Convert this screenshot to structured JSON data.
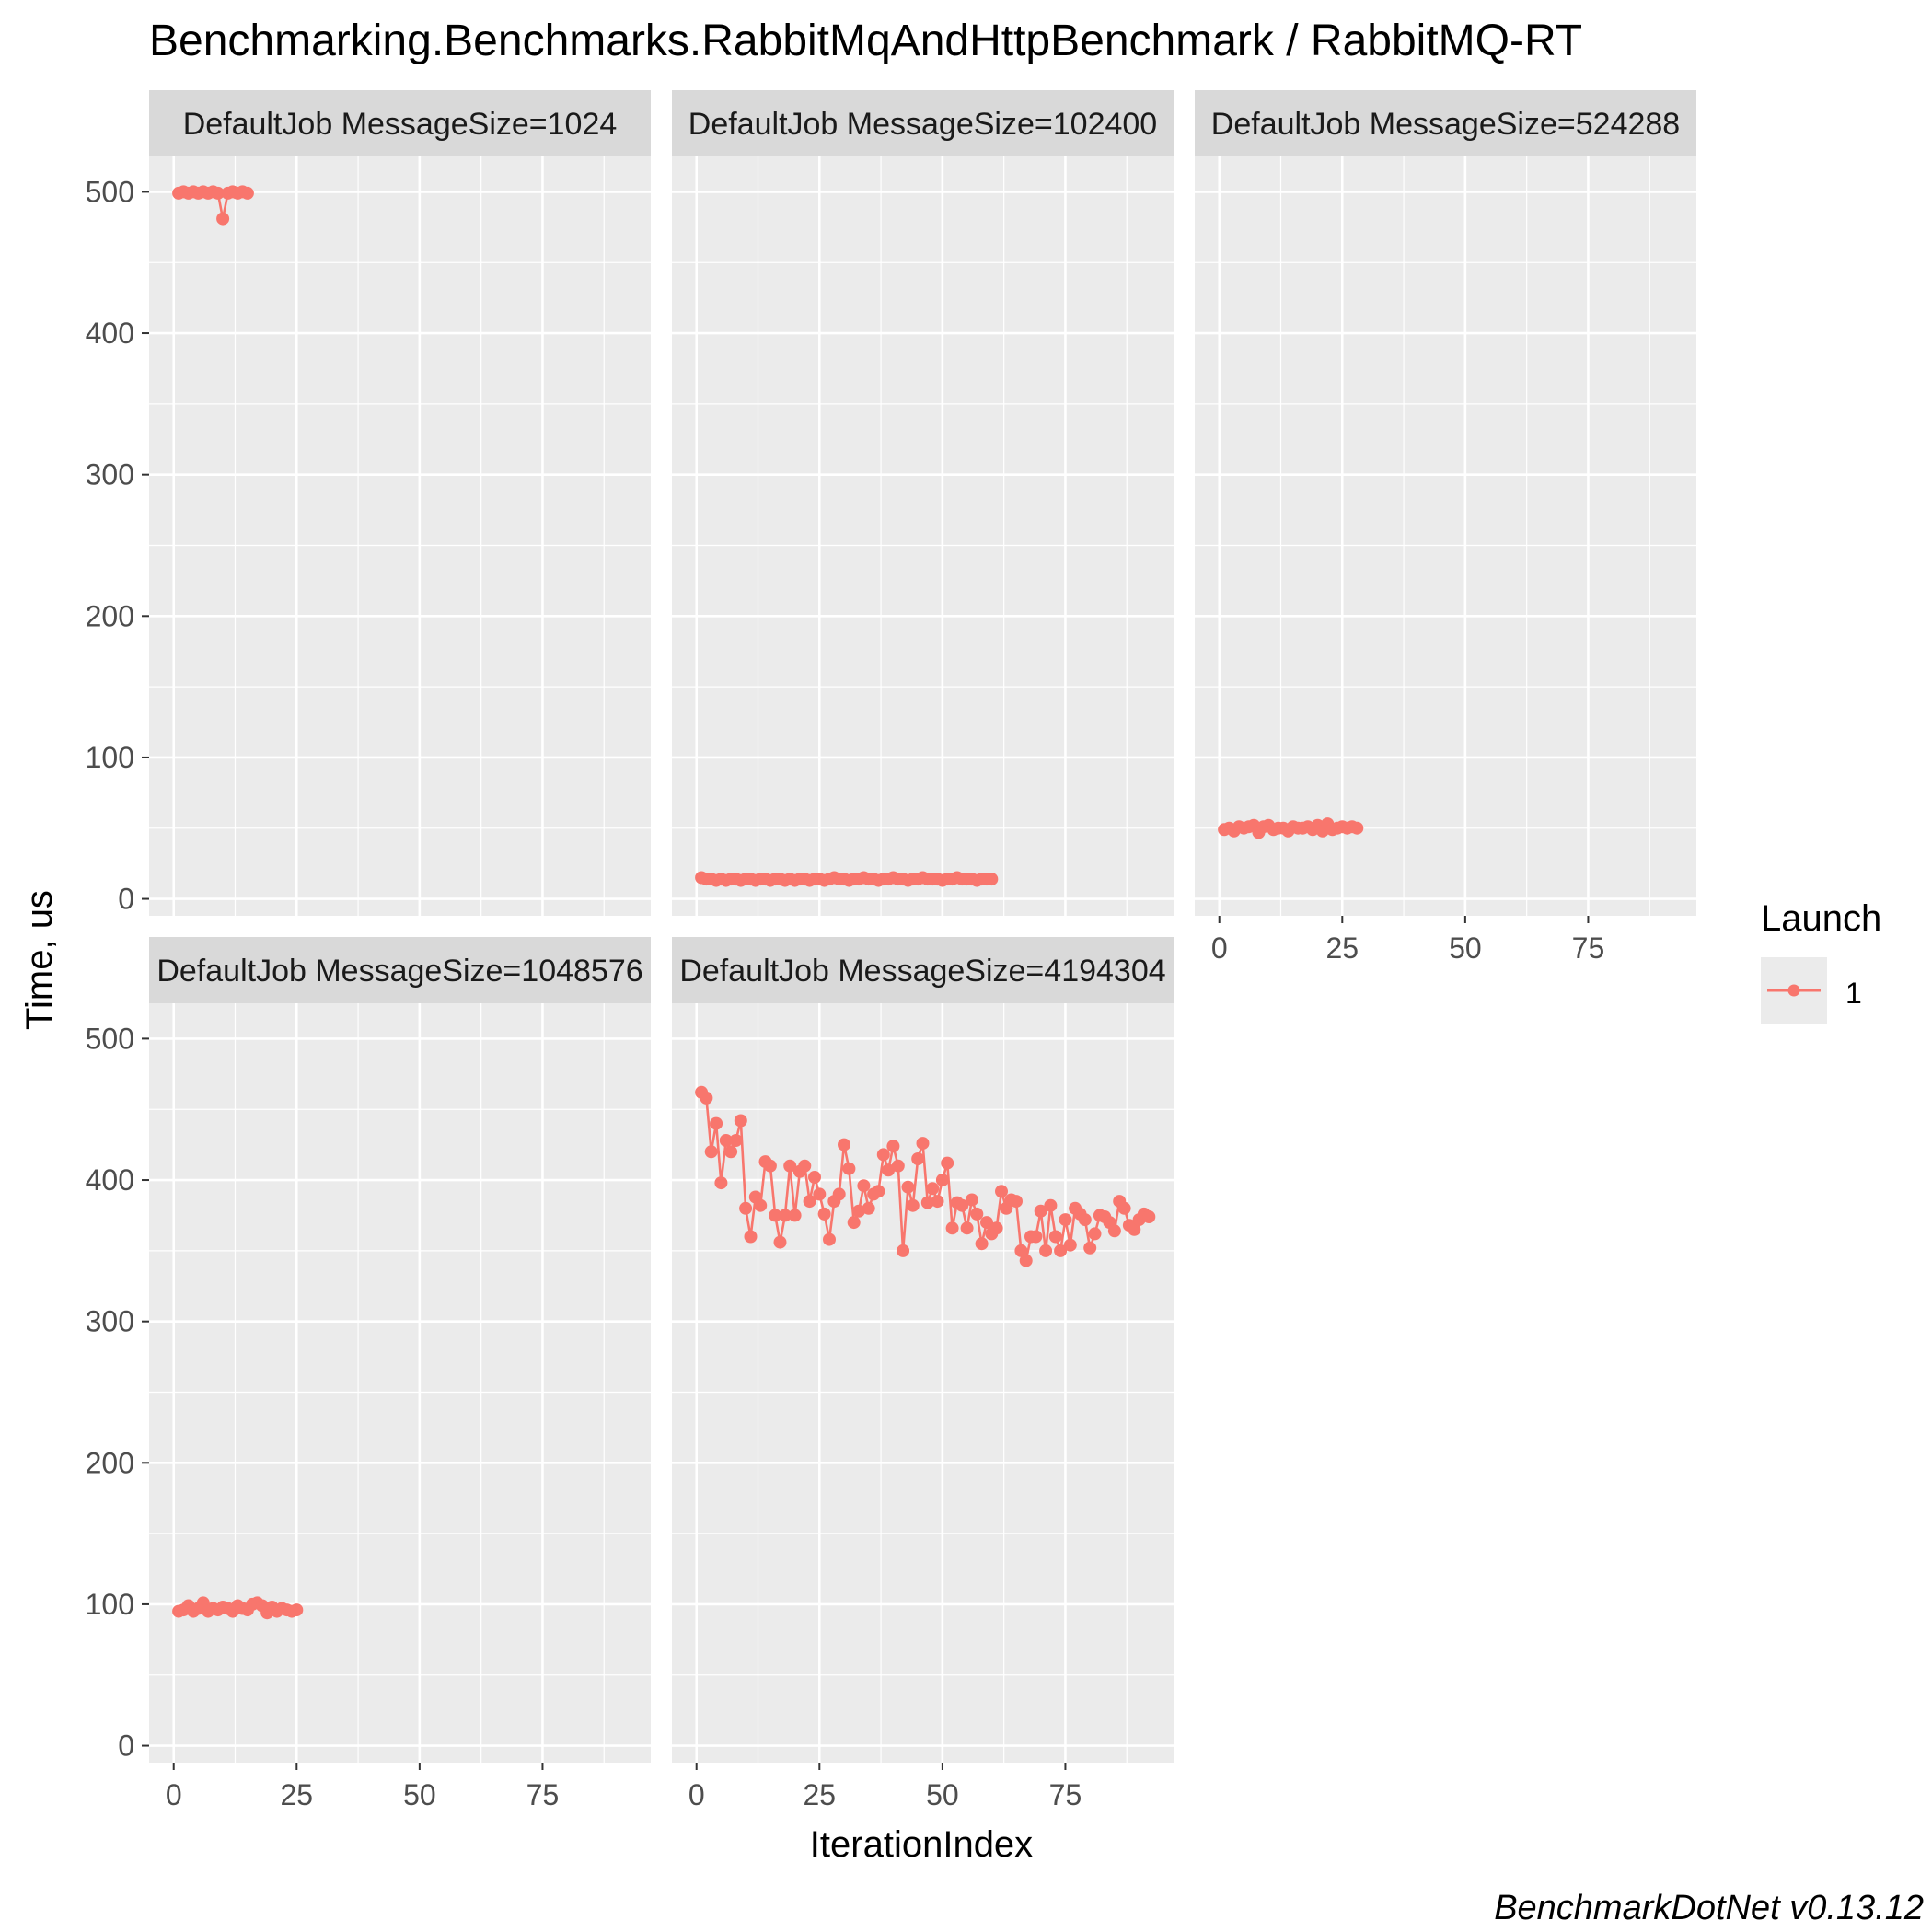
{
  "chart_data": {
    "type": "line",
    "title": "Benchmarking.Benchmarks.RabbitMqAndHttpBenchmark / RabbitMQ-RT",
    "xlabel": "IterationIndex",
    "ylabel": "Time, us",
    "xlim": [
      -5,
      97
    ],
    "ylim": [
      -12,
      525
    ],
    "x_ticks": [
      0,
      25,
      50,
      75
    ],
    "y_ticks": [
      0,
      100,
      200,
      300,
      400,
      500
    ],
    "grid": true,
    "legend": {
      "title": "Launch",
      "position": "right",
      "entries": [
        "1"
      ]
    },
    "series_color": "#F8766D",
    "caption": "BenchmarkDotNet v0.13.12",
    "panels": [
      {
        "strip": "DefaultJob MessageSize=1024",
        "series": [
          {
            "name": "1",
            "x": [
              1,
              2,
              3,
              4,
              5,
              6,
              7,
              8,
              9,
              10,
              11,
              12,
              13,
              14,
              15
            ],
            "y": [
              499,
              500,
              499,
              500,
              499,
              500,
              499,
              500,
              499,
              481,
              499,
              500,
              499,
              500,
              499
            ]
          }
        ]
      },
      {
        "strip": "DefaultJob MessageSize=102400",
        "series": [
          {
            "name": "1",
            "x": [
              1,
              2,
              3,
              4,
              5,
              6,
              7,
              8,
              9,
              10,
              11,
              12,
              13,
              14,
              15,
              16,
              17,
              18,
              19,
              20,
              21,
              22,
              23,
              24,
              25,
              26,
              27,
              28,
              29,
              30,
              31,
              32,
              33,
              34,
              35,
              36,
              37,
              38,
              39,
              40,
              41,
              42,
              43,
              44,
              45,
              46,
              47,
              48,
              49,
              50,
              51,
              52,
              53,
              54,
              55,
              56,
              57,
              58,
              59,
              60
            ],
            "y": [
              15,
              14,
              14,
              13,
              14,
              13,
              14,
              14,
              13,
              14,
              14,
              13,
              14,
              14,
              13,
              14,
              14,
              13,
              14,
              13,
              14,
              14,
              13,
              14,
              14,
              13,
              14,
              15,
              14,
              14,
              13,
              14,
              14,
              15,
              14,
              14,
              13,
              14,
              14,
              15,
              14,
              14,
              13,
              14,
              14,
              15,
              14,
              14,
              14,
              13,
              14,
              14,
              15,
              14,
              14,
              14,
              13,
              14,
              14,
              14
            ]
          }
        ]
      },
      {
        "strip": "DefaultJob MessageSize=524288",
        "series": [
          {
            "name": "1",
            "x": [
              1,
              2,
              3,
              4,
              5,
              6,
              7,
              8,
              9,
              10,
              11,
              12,
              13,
              14,
              15,
              16,
              17,
              18,
              19,
              20,
              21,
              22,
              23,
              24,
              25,
              26,
              27,
              28
            ],
            "y": [
              49,
              50,
              48,
              51,
              50,
              51,
              52,
              47,
              51,
              52,
              49,
              50,
              50,
              48,
              51,
              50,
              50,
              51,
              49,
              52,
              48,
              53,
              49,
              50,
              51,
              50,
              51,
              50
            ]
          }
        ]
      },
      {
        "strip": "DefaultJob MessageSize=1048576",
        "series": [
          {
            "name": "1",
            "x": [
              1,
              2,
              3,
              4,
              5,
              6,
              7,
              8,
              9,
              10,
              11,
              12,
              13,
              14,
              15,
              16,
              17,
              18,
              19,
              20,
              21,
              22,
              23,
              24,
              25
            ],
            "y": [
              95,
              96,
              99,
              95,
              97,
              101,
              95,
              97,
              96,
              98,
              97,
              95,
              99,
              97,
              96,
              100,
              101,
              99,
              94,
              98,
              95,
              97,
              96,
              95,
              96
            ]
          }
        ]
      },
      {
        "strip": "DefaultJob MessageSize=4194304",
        "series": [
          {
            "name": "1",
            "x": [
              1,
              2,
              3,
              4,
              5,
              6,
              7,
              8,
              9,
              10,
              11,
              12,
              13,
              14,
              15,
              16,
              17,
              18,
              19,
              20,
              21,
              22,
              23,
              24,
              25,
              26,
              27,
              28,
              29,
              30,
              31,
              32,
              33,
              34,
              35,
              36,
              37,
              38,
              39,
              40,
              41,
              42,
              43,
              44,
              45,
              46,
              47,
              48,
              49,
              50,
              51,
              52,
              53,
              54,
              55,
              56,
              57,
              58,
              59,
              60,
              61,
              62,
              63,
              64,
              65,
              66,
              67,
              68,
              69,
              70,
              71,
              72,
              73,
              74,
              75,
              76,
              77,
              78,
              79,
              80,
              81,
              82,
              83,
              84,
              85,
              86,
              87,
              88,
              89,
              90,
              91,
              92
            ],
            "y": [
              462,
              458,
              420,
              440,
              398,
              428,
              420,
              428,
              442,
              380,
              360,
              388,
              382,
              413,
              410,
              375,
              356,
              375,
              410,
              375,
              406,
              410,
              385,
              402,
              390,
              376,
              358,
              385,
              390,
              425,
              408,
              370,
              378,
              396,
              380,
              390,
              392,
              418,
              407,
              424,
              410,
              350,
              395,
              382,
              415,
              426,
              384,
              394,
              385,
              400,
              412,
              366,
              384,
              382,
              366,
              386,
              376,
              355,
              370,
              362,
              366,
              392,
              380,
              386,
              385,
              350,
              343,
              360,
              360,
              378,
              350,
              382,
              360,
              350,
              372,
              354,
              380,
              376,
              372,
              352,
              362,
              375,
              374,
              370,
              364,
              385,
              380,
              368,
              365,
              372,
              376,
              374
            ]
          }
        ]
      }
    ]
  }
}
